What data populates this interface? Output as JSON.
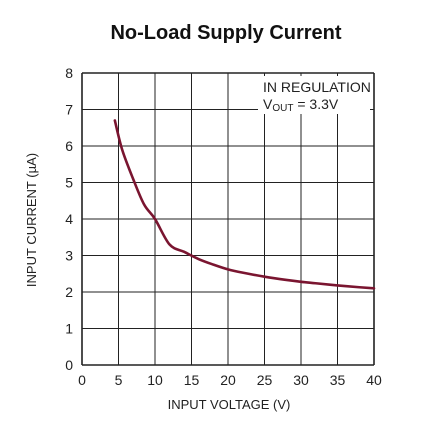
{
  "chart_data": {
    "type": "line",
    "title": "No-Load Supply Current",
    "xlabel": "INPUT VOLTAGE (V)",
    "ylabel": "INPUT CURRENT (µA)",
    "xlim": [
      0,
      40
    ],
    "ylim": [
      0,
      8
    ],
    "xticks": [
      "0",
      "5",
      "10",
      "15",
      "20",
      "25",
      "30",
      "35",
      "40"
    ],
    "yticks": [
      "0",
      "1",
      "2",
      "3",
      "4",
      "5",
      "6",
      "7",
      "8"
    ],
    "grid": true,
    "annotation": {
      "line1": "IN REGULATION",
      "line2_prefix": "V",
      "line2_subscript": "OUT",
      "line2_suffix": " = 3.3V"
    },
    "colors": {
      "series": "#7a1530",
      "grid": "#222222"
    },
    "series": [
      {
        "x": [
          4.5,
          5.5,
          7,
          8.5,
          10,
          12,
          14,
          16,
          18,
          20,
          22,
          25,
          28,
          30,
          32,
          35,
          38,
          40
        ],
        "values": [
          6.7,
          5.9,
          5.1,
          4.4,
          4.0,
          3.3,
          3.1,
          2.9,
          2.75,
          2.62,
          2.53,
          2.42,
          2.33,
          2.28,
          2.24,
          2.18,
          2.13,
          2.1
        ]
      }
    ]
  }
}
